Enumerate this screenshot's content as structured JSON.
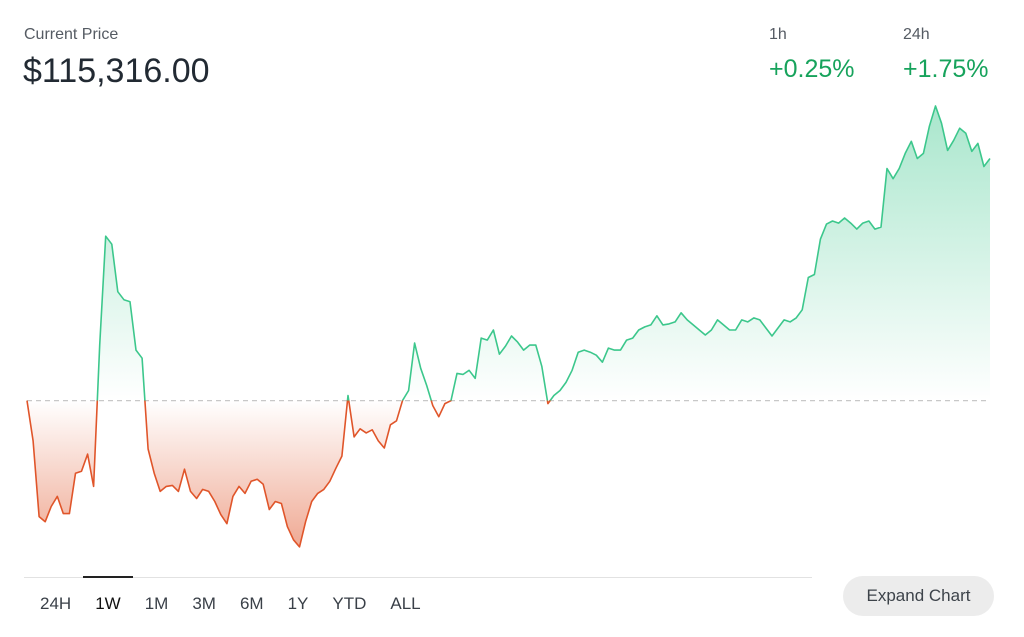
{
  "header": {
    "label": "Current Price",
    "price": "$115,316.00"
  },
  "changes": [
    {
      "label": "1h",
      "value": "+0.25%"
    },
    {
      "label": "24h",
      "value": "+1.75%"
    }
  ],
  "tabs": [
    "24H",
    "1W",
    "1M",
    "3M",
    "6M",
    "1Y",
    "YTD",
    "ALL"
  ],
  "selected_tab": "1W",
  "button": "Expand Chart",
  "chart_data": {
    "type": "line",
    "up_color": "#3cc78c",
    "down_color": "#e0552a",
    "ylim": [
      106500,
      116600
    ],
    "values": [
      110000,
      109114,
      107453,
      107342,
      107674,
      107896,
      107519,
      107519,
      108405,
      108449,
      108826,
      108117,
      111218,
      113610,
      113433,
      112392,
      112215,
      112171,
      111108,
      110930,
      108937,
      108405,
      108006,
      108117,
      108139,
      108006,
      108494,
      108006,
      107851,
      108051,
      108006,
      107785,
      107497,
      107298,
      107896,
      108117,
      107962,
      108228,
      108272,
      108162,
      107608,
      107785,
      107741,
      107231,
      106943,
      106788,
      107342,
      107785,
      107962,
      108051,
      108228,
      108516,
      108782,
      110111,
      109203,
      109380,
      109291,
      109358,
      109114,
      108959,
      109468,
      109557,
      110000,
      110222,
      111263,
      110709,
      110332,
      109889,
      109646,
      109934,
      110000,
      110598,
      110576,
      110665,
      110487,
      111373,
      111329,
      111551,
      111019,
      111196,
      111418,
      111285,
      111108,
      111218,
      111218,
      110753,
      109934,
      110111,
      110222,
      110399,
      110665,
      111063,
      111108,
      111063,
      110997,
      110842,
      111152,
      111108,
      111108,
      111329,
      111373,
      111551,
      111617,
      111661,
      111861,
      111661,
      111683,
      111728,
      111927,
      111772,
      111661,
      111551,
      111440,
      111551,
      111772,
      111661,
      111551,
      111551,
      111772,
      111728,
      111816,
      111772,
      111595,
      111418,
      111595,
      111772,
      111728,
      111816,
      111994,
      112702,
      112769,
      113544,
      113876,
      113943,
      113898,
      114009,
      113898,
      113766,
      113898,
      113943,
      113766,
      113810,
      115095,
      114873,
      115095,
      115427,
      115693,
      115316,
      115427,
      116025,
      116468,
      116091,
      115493,
      115715,
      115981,
      115870,
      115471,
      115648,
      115139,
      115316
    ]
  }
}
